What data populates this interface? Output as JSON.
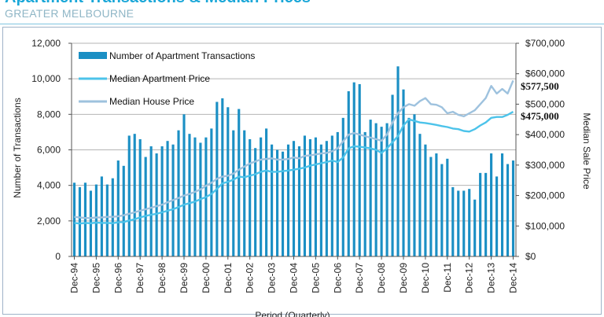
{
  "header": {
    "title": "Apartment Transactions & Median Prices",
    "subtitle": "GREATER MELBOURNE"
  },
  "chart_data": {
    "type": "bar+line",
    "xlabel": "Period (Quarterly)",
    "ylabel_left": "Number of Transactions",
    "ylabel_right": "Median Sale Price",
    "ylim_left": [
      0,
      12000
    ],
    "ylim_right": [
      0,
      700000
    ],
    "left_ticks": [
      "0",
      "2,000",
      "4,000",
      "6,000",
      "8,000",
      "10,000",
      "12,000"
    ],
    "right_ticks": [
      "$0",
      "$100,000",
      "$200,000",
      "$300,000",
      "$400,000",
      "$500,000",
      "$600,000",
      "$700,000"
    ],
    "x_tick_labels": [
      "Dec-94",
      "Dec-95",
      "Dec-96",
      "Dec-97",
      "Dec-98",
      "Dec-99",
      "Dec-00",
      "Dec-01",
      "Dec-02",
      "Dec-03",
      "Dec-04",
      "Dec-05",
      "Dec-06",
      "Dec-07",
      "Dec-08",
      "Dec-09",
      "Dec-10",
      "Dec-11",
      "Dec-12",
      "Dec-13",
      "Dec-14"
    ],
    "grid": true,
    "legend_position": "top-left",
    "colors": {
      "bars": "#1b8fc4",
      "apartment_price": "#4cc3ea",
      "house_price": "#9ec2de"
    },
    "end_labels": {
      "house": "$577,500",
      "apartment": "$475,000"
    },
    "series": [
      {
        "name": "Number of Apartment Transactions",
        "type": "bar",
        "values": [
          4150,
          3900,
          4150,
          3700,
          4050,
          4500,
          4050,
          4400,
          5400,
          5100,
          6800,
          6900,
          6600,
          5600,
          6200,
          5800,
          6200,
          6500,
          6300,
          7100,
          8000,
          6900,
          6700,
          6400,
          6700,
          7200,
          8700,
          8900,
          8400,
          7100,
          8300,
          7100,
          6600,
          6100,
          6700,
          7200,
          6300,
          6000,
          5900,
          6300,
          6500,
          6200,
          6800,
          6600,
          6700,
          6300,
          6500,
          6800,
          7000,
          7800,
          9300,
          9800,
          9700,
          7000,
          7700,
          7500,
          7300,
          7500,
          9100,
          10700,
          9400,
          7800,
          8000,
          6900,
          6300,
          5600,
          5800,
          5200,
          5500,
          3900,
          3700,
          3700,
          3800,
          3200,
          4700,
          4700,
          5800,
          4500,
          5800,
          5200,
          5400
        ]
      },
      {
        "name": "Median Apartment Price",
        "type": "line",
        "values": [
          110000,
          108000,
          110000,
          109000,
          111000,
          110000,
          110000,
          109000,
          112000,
          113000,
          118000,
          122000,
          128000,
          133000,
          137000,
          140000,
          145000,
          150000,
          155000,
          162000,
          170000,
          175000,
          180000,
          188000,
          195000,
          205000,
          222000,
          240000,
          245000,
          252000,
          262000,
          260000,
          265000,
          270000,
          278000,
          282000,
          278000,
          278000,
          280000,
          282000,
          285000,
          288000,
          292000,
          298000,
          302000,
          306000,
          310000,
          315000,
          310000,
          325000,
          355000,
          362000,
          360000,
          358000,
          355000,
          350000,
          340000,
          355000,
          375000,
          395000,
          430000,
          450000,
          445000,
          440000,
          438000,
          435000,
          432000,
          428000,
          425000,
          420000,
          418000,
          412000,
          410000,
          418000,
          430000,
          440000,
          455000,
          458000,
          458000,
          465000,
          475000
        ]
      },
      {
        "name": "Median House Price",
        "type": "line",
        "values": [
          130000,
          128000,
          126000,
          126000,
          128000,
          128000,
          130000,
          130000,
          132000,
          135000,
          140000,
          145000,
          150000,
          155000,
          160000,
          165000,
          170000,
          178000,
          185000,
          192000,
          200000,
          205000,
          212000,
          220000,
          232000,
          242000,
          255000,
          262000,
          265000,
          272000,
          285000,
          295000,
          305000,
          312000,
          318000,
          320000,
          322000,
          318000,
          318000,
          320000,
          325000,
          322000,
          330000,
          332000,
          335000,
          338000,
          340000,
          345000,
          355000,
          378000,
          400000,
          405000,
          400000,
          395000,
          390000,
          385000,
          380000,
          400000,
          440000,
          470000,
          490000,
          500000,
          495000,
          510000,
          520000,
          500000,
          498000,
          490000,
          470000,
          475000,
          465000,
          460000,
          470000,
          480000,
          500000,
          520000,
          560000,
          535000,
          550000,
          535000,
          577500
        ]
      }
    ]
  }
}
